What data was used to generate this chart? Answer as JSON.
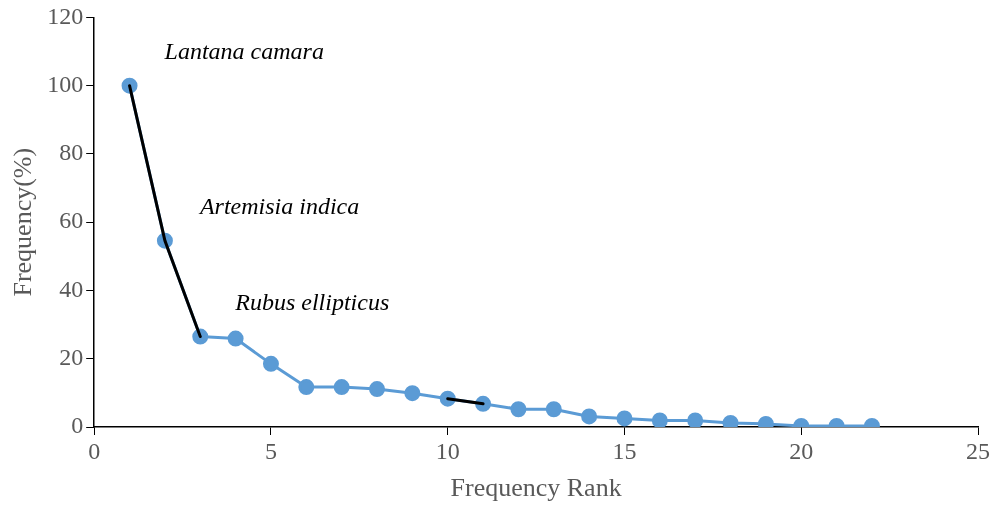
{
  "chart_data": {
    "type": "line",
    "xlabel": "Frequency Rank",
    "ylabel": "Frequency(%)",
    "x": [
      1,
      2,
      3,
      4,
      5,
      6,
      7,
      8,
      9,
      10,
      11,
      12,
      13,
      14,
      15,
      16,
      17,
      18,
      19,
      20,
      21,
      22
    ],
    "series": [
      {
        "color": "#5b9bd5",
        "values": [
          100,
          54.6,
          26.5,
          25.9,
          18.5,
          11.7,
          11.7,
          11.1,
          9.9,
          8.3,
          6.8,
          5.2,
          5.2,
          3.1,
          2.5,
          1.9,
          1.9,
          1.2,
          0.9,
          0.3,
          0.3,
          0.3
        ]
      },
      {
        "color": "#000000",
        "marker": "none",
        "values": [
          100,
          54.6,
          26.5,
          null,
          null,
          null,
          null,
          null,
          null,
          8.3,
          6.8,
          null,
          null,
          null,
          null,
          null,
          null,
          null,
          null,
          null,
          null,
          null
        ]
      }
    ],
    "xlim": [
      0,
      25
    ],
    "xticks": [
      0,
      5,
      10,
      15,
      20,
      25
    ],
    "ylim": [
      0,
      120
    ],
    "yticks": [
      0,
      20,
      40,
      60,
      80,
      100,
      120
    ],
    "grid": false,
    "legend": false,
    "marker": "circle",
    "line_style": "solid",
    "annotations": [
      {
        "text": "Lantana camara",
        "x": 1,
        "y": 100
      },
      {
        "text": "Artemisia indica",
        "x": 2,
        "y": 54.6
      },
      {
        "text": "Rubus ellipticus",
        "x": 3,
        "y": 26.5
      }
    ]
  }
}
